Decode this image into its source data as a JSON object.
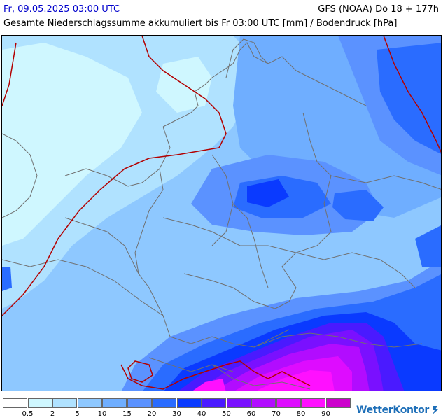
{
  "header": {
    "valid_time": "Fr, 09.05.2025 03:00 UTC",
    "model_run": "GFS (NOAA) Do 18 + 177h",
    "subtitle": "Gesamte Niederschlagssumme akkumuliert bis Fr 03:00 UTC [mm] / Bodendruck [hPa]"
  },
  "legend": {
    "labels": [
      "0.5",
      "2",
      "5",
      "10",
      "15",
      "20",
      "30",
      "40",
      "50",
      "60",
      "70",
      "80",
      "90"
    ],
    "colors": [
      "#ffffff",
      "#cff7ff",
      "#b0e2ff",
      "#8ec8ff",
      "#6faeff",
      "#5b92ff",
      "#2a6cff",
      "#0a3aff",
      "#4a1aff",
      "#7a10ff",
      "#b20cff",
      "#de0cff",
      "#ff10ff",
      "#cc00cc"
    ]
  },
  "map": {
    "isobar_color": "#b30000",
    "border_color": "#707070",
    "background_color": "#8ec8ff"
  },
  "branding": {
    "logo_text": "WetterKontor"
  }
}
